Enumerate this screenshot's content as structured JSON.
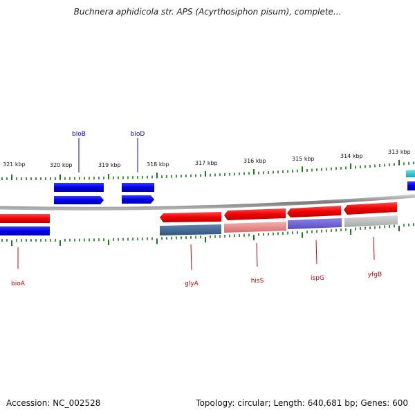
{
  "title": "Buchnera aphidicola str. APS (Acyrthosiphon pisum), complete...",
  "footer": {
    "accession": "Accession: NC_002528",
    "summary": "Topology: circular; Length: 640,681 bp; Genes: 600"
  },
  "ticks": [
    "321 kbp",
    "320 kbp",
    "319 kbp",
    "318 kbp",
    "317 kbp",
    "316 kbp",
    "315 kbp",
    "314 kbp",
    "313 kbp"
  ],
  "genes_forward": [
    {
      "label": "bioB",
      "color": "#0000cc"
    },
    {
      "label": "bioD",
      "color": "#0000cc"
    }
  ],
  "genes_reverse": [
    {
      "label": "bioA",
      "color": "#cc0000"
    },
    {
      "label": "glyA",
      "color": "#cc0000"
    },
    {
      "label": "hisS",
      "color": "#cc0000"
    },
    {
      "label": "ispG",
      "color": "#cc0000"
    },
    {
      "label": "yfgB",
      "color": "#cc0000"
    }
  ]
}
